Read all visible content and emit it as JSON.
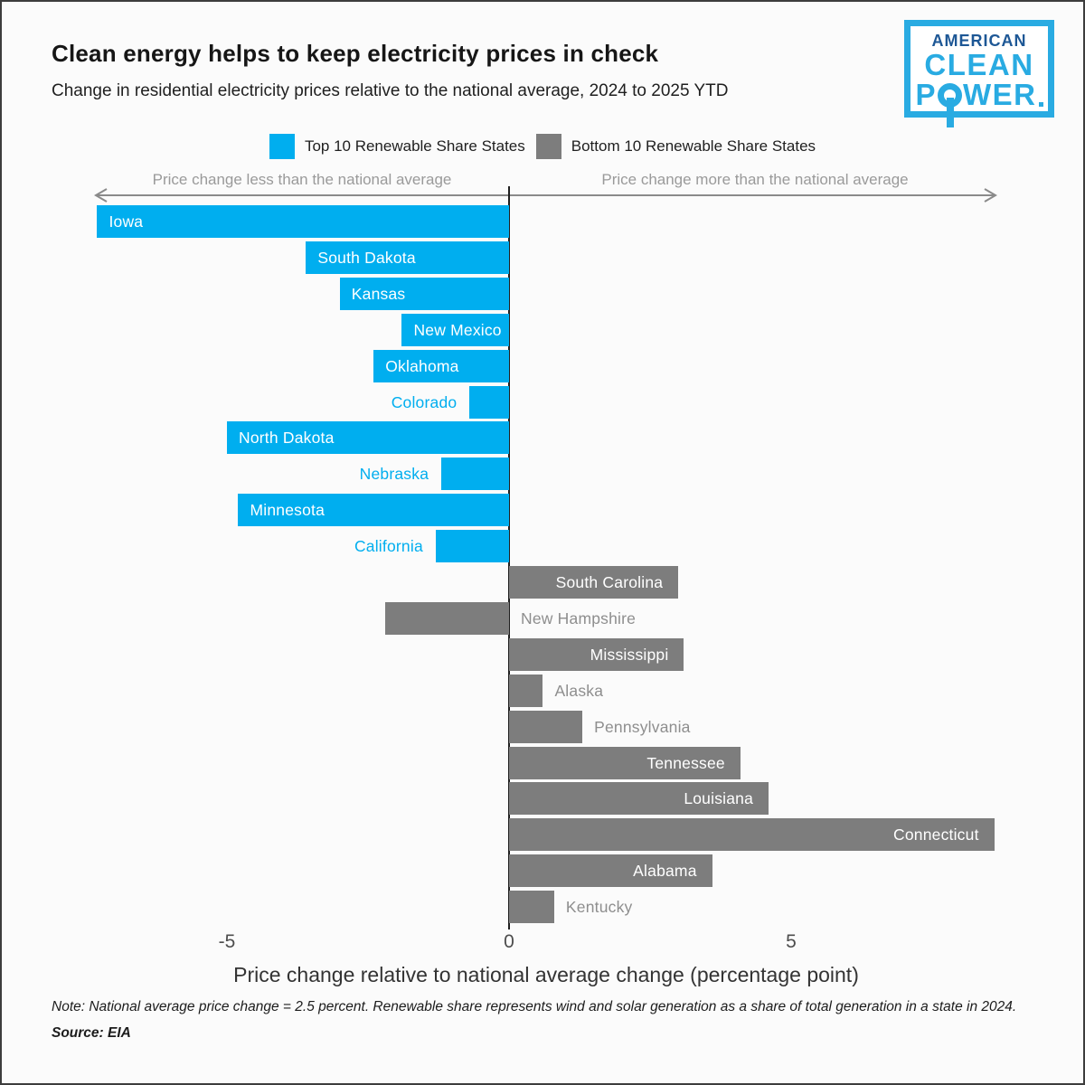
{
  "header": {
    "title": "Clean energy helps to keep electricity prices in check",
    "subtitle": "Change in residential electricity prices relative to the national average, 2024 to 2025 YTD"
  },
  "logo": {
    "line1": "AMERICAN",
    "line2": "CLEAN",
    "power_pre": "P",
    "power_post": "WER",
    "border_color": "#29ABE2",
    "navy": "#1D5795",
    "cyan": "#29ABE2"
  },
  "annotations": {
    "left": "Price change less than the national average",
    "right": "Price change more than the national average"
  },
  "axis": {
    "ticks": [
      "-5",
      "0",
      "5"
    ]
  },
  "chart_data": {
    "type": "bar",
    "orientation": "horizontal-diverging",
    "title": "Clean energy helps to keep electricity prices in check",
    "subtitle": "Change in residential electricity prices relative to the national average, 2024 to 2025 YTD",
    "xlabel": "Price change relative to national average change (percentage point)",
    "xticks": [
      -5,
      0,
      5
    ],
    "xlim": [
      -7.4,
      8.7
    ],
    "legend_position": "top-center",
    "grid": false,
    "groups": {
      "top10": {
        "label": "Top 10 Renewable Share States",
        "color": "#00AEEF"
      },
      "bottom10": {
        "label": "Bottom 10 Renewable Share States",
        "color": "#7D7D7D"
      }
    },
    "points": [
      {
        "state": "Iowa",
        "value": -7.3,
        "group": "top10"
      },
      {
        "state": "South Dakota",
        "value": -3.6,
        "group": "top10"
      },
      {
        "state": "Kansas",
        "value": -3.0,
        "group": "top10"
      },
      {
        "state": "New Mexico",
        "value": -1.9,
        "group": "top10"
      },
      {
        "state": "Oklahoma",
        "value": -2.4,
        "group": "top10"
      },
      {
        "state": "Colorado",
        "value": -0.7,
        "group": "top10"
      },
      {
        "state": "North Dakota",
        "value": -5.0,
        "group": "top10"
      },
      {
        "state": "Nebraska",
        "value": -1.2,
        "group": "top10"
      },
      {
        "state": "Minnesota",
        "value": -4.8,
        "group": "top10"
      },
      {
        "state": "California",
        "value": -1.3,
        "group": "top10"
      },
      {
        "state": "South Carolina",
        "value": 3.0,
        "group": "bottom10"
      },
      {
        "state": "New Hampshire",
        "value": -2.2,
        "group": "bottom10"
      },
      {
        "state": "Mississippi",
        "value": 3.1,
        "group": "bottom10"
      },
      {
        "state": "Alaska",
        "value": 0.6,
        "group": "bottom10"
      },
      {
        "state": "Pennsylvania",
        "value": 1.3,
        "group": "bottom10"
      },
      {
        "state": "Tennessee",
        "value": 4.1,
        "group": "bottom10"
      },
      {
        "state": "Louisiana",
        "value": 4.6,
        "group": "bottom10"
      },
      {
        "state": "Connecticut",
        "value": 8.6,
        "group": "bottom10"
      },
      {
        "state": "Alabama",
        "value": 3.6,
        "group": "bottom10"
      },
      {
        "state": "Kentucky",
        "value": 0.8,
        "group": "bottom10"
      }
    ]
  },
  "footer": {
    "note": "Note: National average price change = 2.5 percent. Renewable share represents wind and solar generation as a share of total generation in a state in 2024.",
    "source": "Source: EIA"
  }
}
